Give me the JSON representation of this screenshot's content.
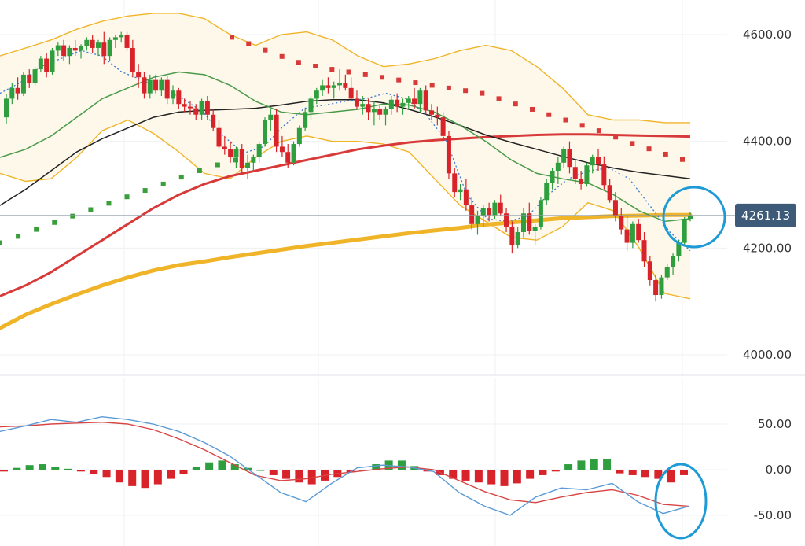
{
  "chart_data": [
    {
      "type": "candlestick",
      "panel": "price",
      "y_ticks": [
        "4600.00",
        "4400.00",
        "4200.00",
        "4000.00"
      ],
      "y_tick_values": [
        4600,
        4400,
        4200,
        4000
      ],
      "ylim": [
        3970,
        4660
      ],
      "last_price_label": "4261.13",
      "last_price": 4261.13,
      "colors": {
        "up": "#2e9e3e",
        "down": "#d8232a",
        "bollinger_band": "#f0b429",
        "band_fill": "#fdf8ea",
        "ma_short": "#4a9a4a",
        "ma_mid": "#222222",
        "ma_long_red": "#d83a3a",
        "ma_long_orange": "#f0b429",
        "psar_up": "#3a9e3a",
        "psar_down": "#d83a3a",
        "ema_dotted": "#3a7bd5",
        "last_price_line": "#8a9aa8",
        "last_price_tag": "#3d5a78",
        "highlight_circle": "#1e9bd6"
      },
      "candles": [
        [
          4445,
          4488,
          4432,
          4480
        ],
        [
          4480,
          4510,
          4470,
          4500
        ],
        [
          4500,
          4520,
          4478,
          4490
        ],
        [
          4490,
          4530,
          4485,
          4525
        ],
        [
          4525,
          4535,
          4500,
          4510
        ],
        [
          4510,
          4540,
          4505,
          4535
        ],
        [
          4535,
          4560,
          4530,
          4555
        ],
        [
          4555,
          4565,
          4520,
          4530
        ],
        [
          4530,
          4575,
          4525,
          4570
        ],
        [
          4570,
          4585,
          4560,
          4580
        ],
        [
          4580,
          4590,
          4550,
          4560
        ],
        [
          4560,
          4580,
          4545,
          4575
        ],
        [
          4575,
          4590,
          4560,
          4570
        ],
        [
          4570,
          4582,
          4555,
          4578
        ],
        [
          4578,
          4595,
          4570,
          4590
        ],
        [
          4590,
          4600,
          4565,
          4575
        ],
        [
          4575,
          4590,
          4560,
          4585
        ],
        [
          4585,
          4605,
          4545,
          4560
        ],
        [
          4560,
          4595,
          4550,
          4590
        ],
        [
          4590,
          4600,
          4575,
          4595
        ],
        [
          4595,
          4605,
          4585,
          4600
        ],
        [
          4600,
          4605,
          4570,
          4575
        ],
        [
          4575,
          4590,
          4520,
          4530
        ],
        [
          4530,
          4545,
          4500,
          4520
        ],
        [
          4520,
          4530,
          4480,
          4490
        ],
        [
          4490,
          4525,
          4480,
          4515
        ],
        [
          4515,
          4525,
          4490,
          4495
        ],
        [
          4495,
          4520,
          4485,
          4515
        ],
        [
          4515,
          4522,
          4470,
          4480
        ],
        [
          4480,
          4505,
          4470,
          4495
        ],
        [
          4495,
          4500,
          4460,
          4470
        ],
        [
          4470,
          4480,
          4455,
          4465
        ],
        [
          4465,
          4475,
          4450,
          4462
        ],
        [
          4462,
          4470,
          4440,
          4450
        ],
        [
          4450,
          4480,
          4440,
          4475
        ],
        [
          4475,
          4485,
          4440,
          4450
        ],
        [
          4450,
          4460,
          4420,
          4425
        ],
        [
          4425,
          4440,
          4385,
          4390
        ],
        [
          4390,
          4410,
          4375,
          4385
        ],
        [
          4385,
          4400,
          4360,
          4370
        ],
        [
          4370,
          4390,
          4350,
          4385
        ],
        [
          4385,
          4395,
          4340,
          4350
        ],
        [
          4350,
          4375,
          4330,
          4360
        ],
        [
          4360,
          4375,
          4345,
          4370
        ],
        [
          4370,
          4400,
          4360,
          4395
        ],
        [
          4395,
          4445,
          4390,
          4440
        ],
        [
          4440,
          4460,
          4420,
          4450
        ],
        [
          4450,
          4460,
          4380,
          4390
        ],
        [
          4390,
          4410,
          4370,
          4380
        ],
        [
          4380,
          4395,
          4350,
          4360
        ],
        [
          4360,
          4400,
          4355,
          4395
        ],
        [
          4395,
          4430,
          4390,
          4425
        ],
        [
          4425,
          4460,
          4420,
          4455
        ],
        [
          4455,
          4485,
          4440,
          4480
        ],
        [
          4480,
          4500,
          4470,
          4495
        ],
        [
          4495,
          4515,
          4485,
          4505
        ],
        [
          4505,
          4520,
          4490,
          4500
        ],
        [
          4500,
          4512,
          4480,
          4505
        ],
        [
          4505,
          4535,
          4495,
          4510
        ],
        [
          4510,
          4525,
          4495,
          4500
        ],
        [
          4500,
          4520,
          4475,
          4480
        ],
        [
          4480,
          4495,
          4460,
          4465
        ],
        [
          4465,
          4485,
          4450,
          4470
        ],
        [
          4470,
          4480,
          4440,
          4455
        ],
        [
          4455,
          4475,
          4430,
          4460
        ],
        [
          4460,
          4470,
          4440,
          4450
        ],
        [
          4450,
          4465,
          4430,
          4460
        ],
        [
          4460,
          4485,
          4450,
          4478
        ],
        [
          4478,
          4490,
          4455,
          4465
        ],
        [
          4465,
          4480,
          4450,
          4472
        ],
        [
          4472,
          4485,
          4460,
          4480
        ],
        [
          4480,
          4500,
          4460,
          4470
        ],
        [
          4470,
          4500,
          4455,
          4495
        ],
        [
          4495,
          4505,
          4450,
          4458
        ],
        [
          4458,
          4470,
          4440,
          4450
        ],
        [
          4450,
          4465,
          4430,
          4445
        ],
        [
          4445,
          4455,
          4400,
          4410
        ],
        [
          4410,
          4420,
          4330,
          4340
        ],
        [
          4340,
          4350,
          4295,
          4305
        ],
        [
          4305,
          4320,
          4290,
          4310
        ],
        [
          4310,
          4330,
          4270,
          4280
        ],
        [
          4280,
          4295,
          4235,
          4245
        ],
        [
          4245,
          4270,
          4225,
          4260
        ],
        [
          4260,
          4280,
          4240,
          4275
        ],
        [
          4275,
          4285,
          4250,
          4262
        ],
        [
          4262,
          4290,
          4255,
          4285
        ],
        [
          4285,
          4300,
          4260,
          4265
        ],
        [
          4265,
          4275,
          4230,
          4240
        ],
        [
          4240,
          4250,
          4190,
          4205
        ],
        [
          4205,
          4240,
          4200,
          4230
        ],
        [
          4230,
          4275,
          4220,
          4265
        ],
        [
          4265,
          4285,
          4225,
          4232
        ],
        [
          4232,
          4245,
          4205,
          4240
        ],
        [
          4240,
          4295,
          4235,
          4290
        ],
        [
          4290,
          4330,
          4280,
          4322
        ],
        [
          4322,
          4350,
          4310,
          4345
        ],
        [
          4345,
          4370,
          4320,
          4360
        ],
        [
          4360,
          4390,
          4350,
          4385
        ],
        [
          4385,
          4400,
          4340,
          4352
        ],
        [
          4352,
          4365,
          4320,
          4330
        ],
        [
          4330,
          4345,
          4310,
          4320
        ],
        [
          4320,
          4360,
          4315,
          4355
        ],
        [
          4355,
          4375,
          4340,
          4370
        ],
        [
          4370,
          4385,
          4345,
          4358
        ],
        [
          4358,
          4372,
          4310,
          4318
        ],
        [
          4318,
          4330,
          4285,
          4290
        ],
        [
          4290,
          4305,
          4250,
          4260
        ],
        [
          4260,
          4275,
          4225,
          4235
        ],
        [
          4235,
          4260,
          4195,
          4210
        ],
        [
          4210,
          4250,
          4200,
          4245
        ],
        [
          4245,
          4255,
          4210,
          4215
        ],
        [
          4215,
          4230,
          4165,
          4175
        ],
        [
          4175,
          4185,
          4130,
          4140
        ],
        [
          4140,
          4150,
          4100,
          4112
        ],
        [
          4112,
          4150,
          4105,
          4145
        ],
        [
          4145,
          4170,
          4140,
          4165
        ],
        [
          4165,
          4190,
          4150,
          4185
        ],
        [
          4185,
          4215,
          4175,
          4210
        ],
        [
          4210,
          4258,
          4205,
          4255
        ],
        [
          4255,
          4268,
          4250,
          4261.13
        ]
      ],
      "bollinger": {
        "upper": [
          4560,
          4575,
          4590,
          4610,
          4625,
          4635,
          4640,
          4640,
          4630,
          4600,
          4580,
          4600,
          4605,
          4590,
          4560,
          4540,
          4545,
          4555,
          4570,
          4580,
          4570,
          4540,
          4500,
          4450,
          4440,
          4440,
          4435,
          4435
        ],
        "lower": [
          4340,
          4325,
          4330,
          4370,
          4420,
          4440,
          4415,
          4380,
          4340,
          4330,
          4370,
          4400,
          4410,
          4400,
          4400,
          4395,
          4380,
          4330,
          4280,
          4250,
          4220,
          4215,
          4240,
          4285,
          4270,
          4200,
          4115,
          4105
        ]
      },
      "sma_short": [
        4370,
        4385,
        4410,
        4445,
        4480,
        4500,
        4520,
        4530,
        4525,
        4505,
        4475,
        4455,
        4450,
        4455,
        4460,
        4470,
        4468,
        4455,
        4430,
        4400,
        4365,
        4340,
        4330,
        4322,
        4300,
        4270,
        4250,
        4255
      ],
      "sma_mid": [
        4280,
        4310,
        4345,
        4380,
        4405,
        4425,
        4445,
        4455,
        4458,
        4460,
        4462,
        4468,
        4475,
        4478,
        4478,
        4472,
        4460,
        4446,
        4430,
        4412,
        4398,
        4385,
        4372,
        4360,
        4350,
        4342,
        4336,
        4330
      ],
      "ma_red": [
        4110,
        4130,
        4155,
        4185,
        4215,
        4245,
        4275,
        4300,
        4320,
        4335,
        4345,
        4355,
        4365,
        4375,
        4385,
        4392,
        4398,
        4402,
        4405,
        4408,
        4410,
        4412,
        4413,
        4413,
        4412,
        4411,
        4410,
        4409
      ],
      "ma_orange": [
        4050,
        4075,
        4095,
        4113,
        4130,
        4145,
        4158,
        4168,
        4175,
        4183,
        4190,
        4197,
        4204,
        4210,
        4216,
        4222,
        4228,
        4233,
        4238,
        4244,
        4248,
        4252,
        4256,
        4258,
        4260,
        4261,
        4262,
        4262
      ],
      "psar_up": [
        4210,
        4222,
        4235,
        4248,
        4260,
        4272,
        4284,
        4296,
        4308,
        4320,
        4333,
        4345,
        4356,
        4365
      ],
      "psar_down": [
        4595,
        4583,
        4571,
        4559,
        4548,
        4541,
        4535,
        4530,
        4525,
        4520,
        4515,
        4510,
        4505,
        4500,
        4495,
        4490,
        4480,
        4470,
        4460,
        4450,
        4440,
        4430,
        4420,
        4408,
        4396,
        4386,
        4376,
        4366
      ],
      "ema_dotted": [
        4490,
        4510,
        4540,
        4555,
        4570,
        4560,
        4530,
        4515,
        4498,
        4480,
        4455,
        4410,
        4378,
        4390,
        4430,
        4462,
        4468,
        4475,
        4480,
        4490,
        4480,
        4450,
        4400,
        4300,
        4255,
        4250,
        4260,
        4300,
        4330,
        4345,
        4350,
        4330,
        4280,
        4230,
        4195
      ]
    },
    {
      "type": "macd",
      "panel": "indicator",
      "y_ticks": [
        "50.00",
        "0.00",
        "-50.00"
      ],
      "y_tick_values": [
        50,
        0,
        -50
      ],
      "ylim": [
        -80,
        85
      ],
      "colors": {
        "macd": "#5b9bd5",
        "signal": "#d84545",
        "hist_up": "#2e9e3e",
        "hist_down": "#d8232a"
      },
      "macd": [
        42,
        48,
        55,
        52,
        58,
        55,
        50,
        42,
        30,
        15,
        -5,
        -25,
        -35,
        -15,
        2,
        5,
        3,
        -2,
        -25,
        -40,
        -50,
        -30,
        -20,
        -22,
        -15,
        -35,
        -48,
        -40
      ],
      "signal": [
        47,
        48,
        50,
        51,
        52,
        50,
        44,
        34,
        22,
        8,
        -6,
        -12,
        -10,
        -5,
        -2,
        1,
        3,
        0,
        -12,
        -24,
        -33,
        -36,
        -30,
        -25,
        -22,
        -28,
        -38,
        -40
      ],
      "histogram": [
        -2,
        2,
        5,
        6,
        3,
        1,
        -2,
        -5,
        -8,
        -14,
        -18,
        -20,
        -16,
        -10,
        -5,
        3,
        8,
        10,
        6,
        2,
        0,
        -6,
        -10,
        -14,
        -16,
        -12,
        -8,
        -3,
        0,
        6,
        10,
        10,
        4,
        -2,
        -6,
        -10,
        -12,
        -14,
        -16,
        -18,
        -15,
        -10,
        -6,
        -2,
        6,
        10,
        12,
        12,
        -4,
        -6,
        -8,
        -10,
        -14,
        -6
      ]
    }
  ]
}
